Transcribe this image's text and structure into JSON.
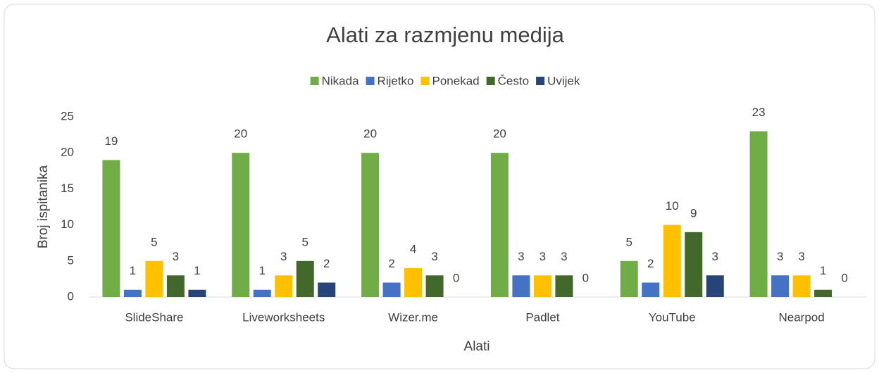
{
  "chart_data": {
    "type": "bar",
    "title": "Alati za razmjenu medija",
    "x_label": "Alati",
    "y_label": "Broj ispitanika",
    "categories": [
      "SlideShare",
      "Liveworksheets",
      "Wizer.me",
      "Padlet",
      "YouTube",
      "Nearpod"
    ],
    "series": [
      {
        "name": "Nikada",
        "color": "#70ad47",
        "values": [
          19,
          20,
          20,
          20,
          5,
          23
        ]
      },
      {
        "name": "Rijetko",
        "color": "#4472c4",
        "values": [
          1,
          1,
          2,
          3,
          2,
          3
        ]
      },
      {
        "name": "Ponekad",
        "color": "#ffc000",
        "values": [
          5,
          3,
          4,
          3,
          10,
          3
        ]
      },
      {
        "name": "Često",
        "color": "#43682b",
        "values": [
          3,
          5,
          3,
          3,
          9,
          1
        ]
      },
      {
        "name": "Uvijek",
        "color": "#264478",
        "values": [
          1,
          2,
          0,
          0,
          3,
          0
        ]
      }
    ],
    "ylim": [
      0,
      25
    ],
    "yticks": [
      0,
      5,
      10,
      15,
      20,
      25
    ],
    "grid": false,
    "legend": "top"
  }
}
